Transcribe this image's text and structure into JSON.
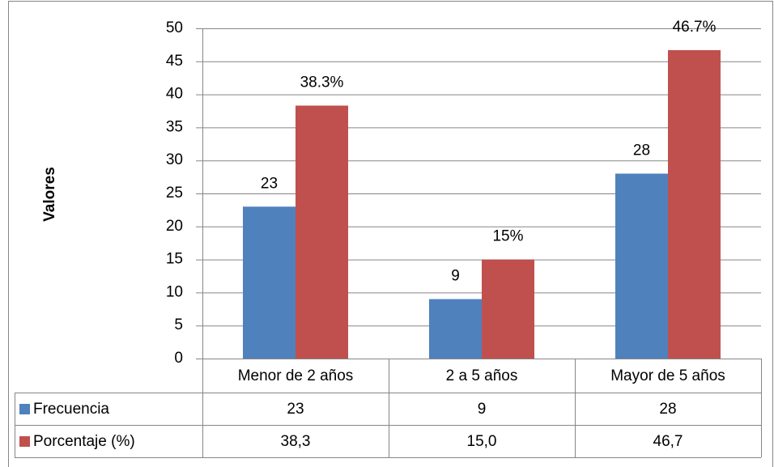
{
  "chart_data": {
    "type": "bar",
    "y_label": "Valores",
    "categories": [
      "Menor de 2 años",
      "2 a 5 años",
      "Mayor de 5 años"
    ],
    "series": [
      {
        "name": "Frecuencia",
        "color": "#4f81bd",
        "values": [
          23,
          9,
          28
        ]
      },
      {
        "name": "Porcentaje (%)",
        "color": "#c0504d",
        "values": [
          38.3,
          15,
          46.7
        ],
        "value_labels": [
          "38.3%",
          "15%",
          "46.7%"
        ],
        "table_labels": [
          "38,3",
          "15,0",
          "46,7"
        ]
      }
    ],
    "ylim": [
      0,
      50
    ],
    "yticks": [
      0,
      5,
      10,
      15,
      20,
      25,
      30,
      35,
      40,
      45,
      50
    ],
    "grid": true,
    "data_table": true
  }
}
